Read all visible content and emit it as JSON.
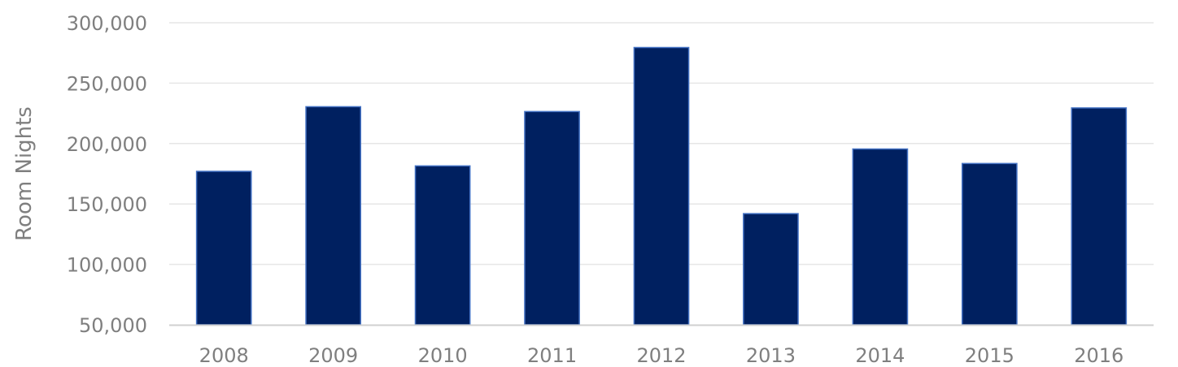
{
  "chart_data": {
    "type": "bar",
    "categories": [
      "2008",
      "2009",
      "2010",
      "2011",
      "2012",
      "2013",
      "2014",
      "2015",
      "2016"
    ],
    "values": [
      177000,
      230500,
      181500,
      226500,
      279500,
      142000,
      195500,
      183500,
      229500
    ],
    "title": "",
    "xlabel": "",
    "ylabel": "Room Nights",
    "ylim": [
      50000,
      300000
    ],
    "yticks": [
      "50,000",
      "100,000",
      "150,000",
      "200,000",
      "250,000",
      "300,000"
    ],
    "ytick_values": [
      50000,
      100000,
      150000,
      200000,
      250000,
      300000
    ],
    "grid": true,
    "bar_color": "#002060",
    "bar_edge_color": "#4472c4",
    "grid_color": "#e6e6e6",
    "axis_color": "#d0d0d0",
    "text_color": "#7f7f7f"
  }
}
